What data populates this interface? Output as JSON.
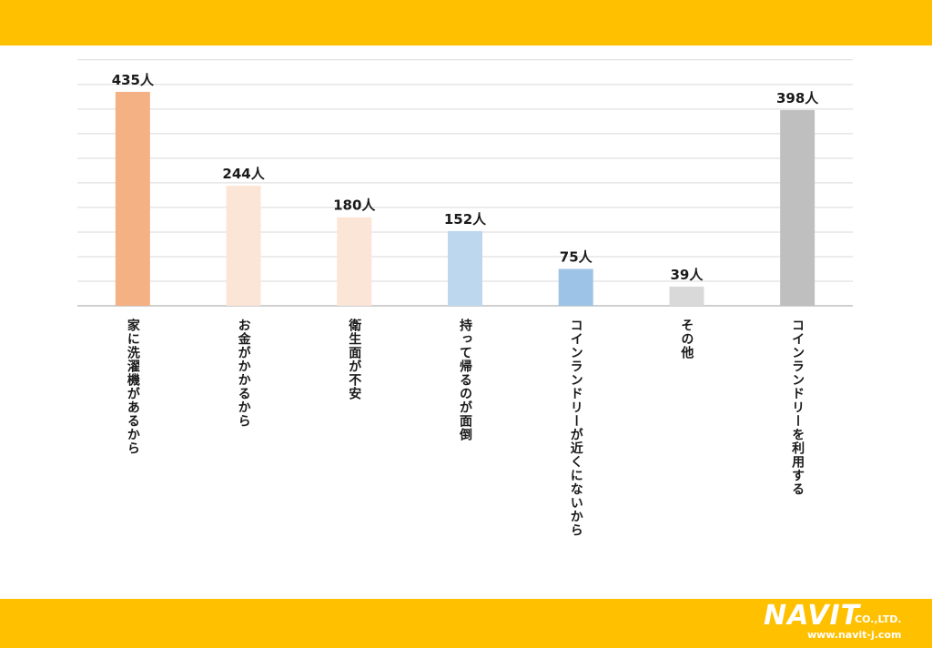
{
  "chart_data": {
    "type": "bar",
    "categories": [
      "家に洗濯機があるから",
      "お金がかかるから",
      "衛生面が不安",
      "持って帰るのが面倒",
      "コインランドリーが近くにないから",
      "その他",
      "コインランドリーを利用する"
    ],
    "values": [
      435,
      244,
      180,
      152,
      75,
      39,
      398
    ],
    "value_labels": [
      "435人",
      "244人",
      "180人",
      "152人",
      "75人",
      "39人",
      "398人"
    ],
    "colors": [
      "#F4B183",
      "#FBE5D6",
      "#FBE5D6",
      "#BDD7EE",
      "#9DC3E6",
      "#D9D9D9",
      "#BFBFBF"
    ],
    "ylim": [
      0,
      500
    ],
    "grid": true,
    "title": "",
    "xlabel": "",
    "ylabel": ""
  },
  "branding": {
    "logo_text": "NAVIT",
    "company_suffix": "CO.,LTD.",
    "url": "www.navit-j.com",
    "band_color": "#FFC000"
  }
}
